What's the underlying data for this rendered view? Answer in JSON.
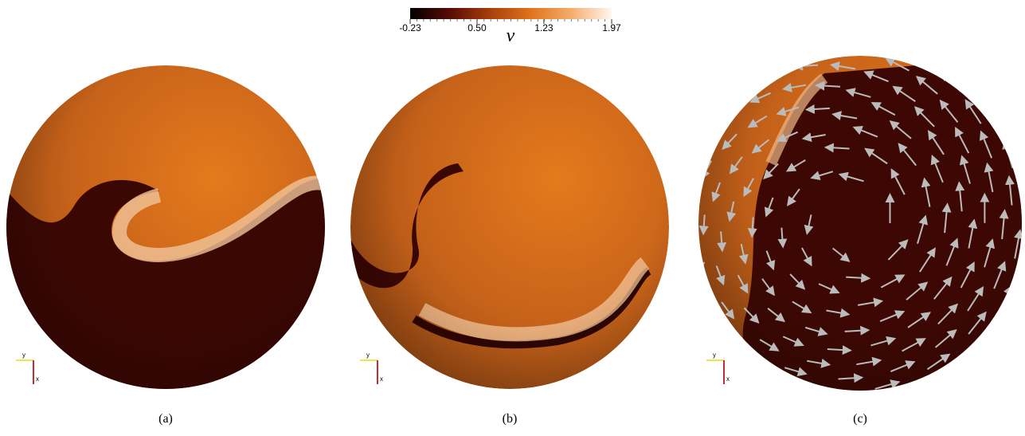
{
  "colorbar": {
    "label": "v",
    "range": [
      -0.23,
      1.97
    ],
    "ticks": [
      -0.23,
      {
        "value": 0.5,
        "label": "0.50"
      },
      1.23,
      1.97
    ],
    "colors": [
      "#000000",
      "#5a0c04",
      "#a8400c",
      "#e0741c",
      "#f4ad6c",
      "#fff8f0"
    ]
  },
  "panels": [
    {
      "caption": "(a)",
      "axis_labels": [
        "y",
        "x"
      ]
    },
    {
      "caption": "(b)",
      "axis_labels": [
        "y",
        "x"
      ]
    },
    {
      "caption": "(c)",
      "axis_labels": [
        "y",
        "x"
      ]
    }
  ]
}
